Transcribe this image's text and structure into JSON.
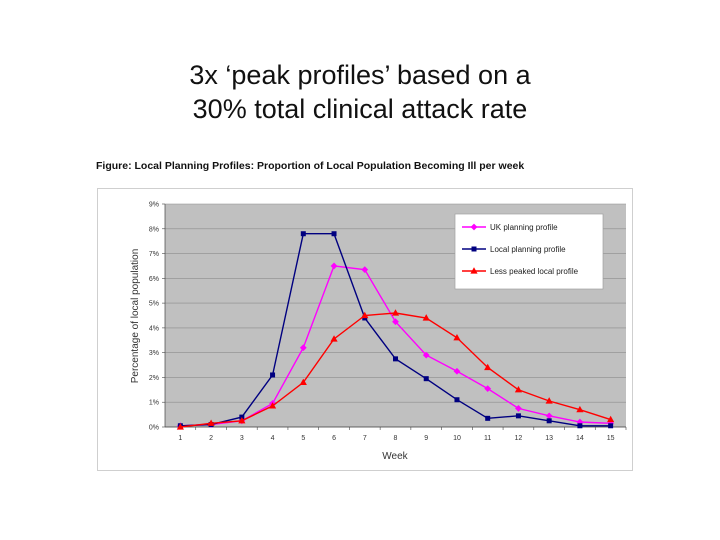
{
  "slide": {
    "title_line1": "3x ‘peak profiles’ based on a",
    "title_line2": "30% total clinical attack rate"
  },
  "chart_data": {
    "type": "line",
    "title": "Figure: Local Planning Profiles: Proportion of Local Population Becoming Ill per week",
    "xlabel": "Week",
    "ylabel": "Percentage of local population",
    "x": [
      1,
      2,
      3,
      4,
      5,
      6,
      7,
      8,
      9,
      10,
      11,
      12,
      13,
      14,
      15
    ],
    "ylim": [
      0,
      9
    ],
    "y_ticks": [
      "0%",
      "1%",
      "2%",
      "3%",
      "4%",
      "5%",
      "6%",
      "7%",
      "8%",
      "9%"
    ],
    "grid": true,
    "legend_position": "top-right",
    "plot_background": "#c0c0c0",
    "series": [
      {
        "name": "UK planning profile",
        "color": "#ff00ff",
        "marker": "diamond",
        "values": [
          0.05,
          0.1,
          0.25,
          0.95,
          3.2,
          6.5,
          6.35,
          4.25,
          2.9,
          2.25,
          1.55,
          0.75,
          0.45,
          0.2,
          0.15
        ]
      },
      {
        "name": "Local planning profile",
        "color": "#000080",
        "marker": "square",
        "values": [
          0.05,
          0.1,
          0.4,
          2.1,
          7.8,
          7.8,
          4.4,
          2.75,
          1.95,
          1.1,
          0.35,
          0.45,
          0.25,
          0.05,
          0.05
        ]
      },
      {
        "name": "Less peaked local profile",
        "color": "#ff0000",
        "marker": "triangle",
        "values": [
          0.0,
          0.15,
          0.25,
          0.85,
          1.8,
          3.55,
          4.5,
          4.6,
          4.4,
          3.6,
          2.4,
          1.5,
          1.05,
          0.7,
          0.3
        ]
      }
    ]
  }
}
